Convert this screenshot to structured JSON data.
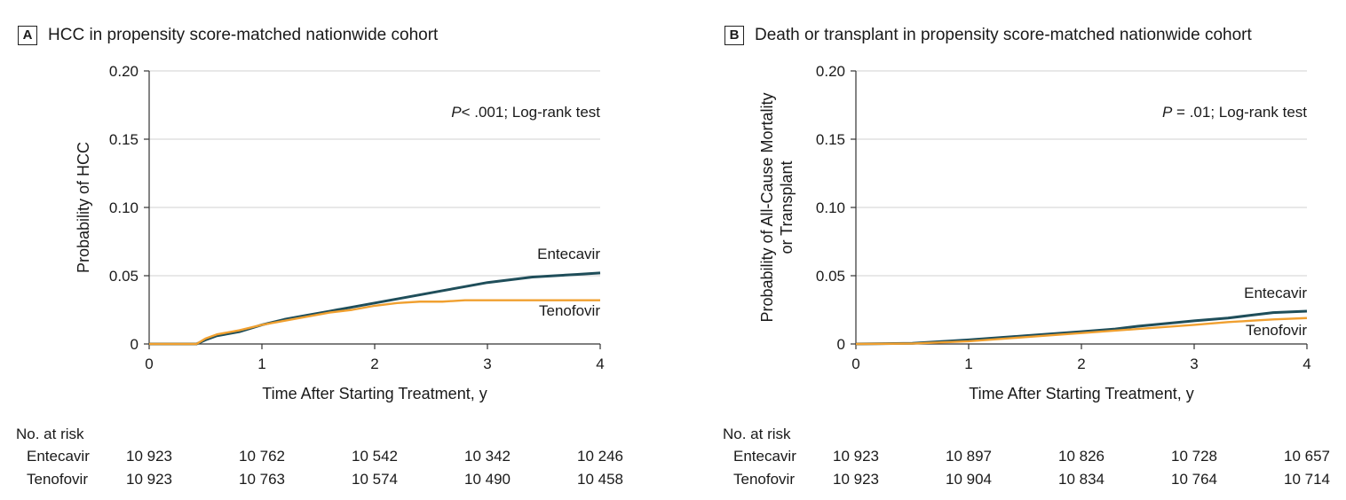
{
  "colors": {
    "entecavir": "#1f4e5a",
    "tenofovir": "#f0a030",
    "grid": "#d0d0d0",
    "axis": "#333333"
  },
  "panels": [
    {
      "badge": "A",
      "title": "HCC in propensity score-matched  nationwide cohort",
      "annotation_p": "P",
      "annotation_rest": "< .001; Log-rank test",
      "risk_header": "No. at risk",
      "risk_rows": [
        {
          "label": "Entecavir",
          "values": [
            "10 923",
            "10 762",
            "10 542",
            "10 342",
            "10 246"
          ]
        },
        {
          "label": "Tenofovir",
          "values": [
            "10 923",
            "10 763",
            "10 574",
            "10 490",
            "10 458"
          ]
        }
      ]
    },
    {
      "badge": "B",
      "title": "Death or transplant in propensity score-matched nationwide cohort",
      "annotation_p": "P",
      "annotation_rest": " = .01; Log-rank test",
      "risk_header": "No. at risk",
      "risk_rows": [
        {
          "label": "Entecavir",
          "values": [
            "10 923",
            "10 897",
            "10 826",
            "10 728",
            "10 657"
          ]
        },
        {
          "label": "Tenofovir",
          "values": [
            "10 923",
            "10 904",
            "10 834",
            "10 764",
            "10 714"
          ]
        }
      ]
    }
  ],
  "chart_data": [
    {
      "type": "line",
      "title": "HCC in propensity score-matched  nationwide cohort",
      "xlabel": "Time After Starting Treatment, y",
      "ylabel": "Probability of HCC",
      "xlim": [
        0,
        4
      ],
      "ylim": [
        0,
        0.2
      ],
      "xticks": [
        "0",
        "1",
        "2",
        "3",
        "4"
      ],
      "yticks": [
        "0",
        "0.05",
        "0.10",
        "0.15",
        "0.20"
      ],
      "grid": true,
      "series": [
        {
          "name": "Entecavir",
          "x": [
            0,
            0.42,
            0.5,
            0.6,
            0.8,
            1.0,
            1.2,
            1.4,
            1.6,
            1.8,
            2.0,
            2.2,
            2.4,
            2.6,
            2.8,
            3.0,
            3.2,
            3.4,
            3.6,
            3.8,
            4.0
          ],
          "y": [
            0,
            0,
            0.003,
            0.006,
            0.009,
            0.014,
            0.018,
            0.021,
            0.024,
            0.027,
            0.03,
            0.033,
            0.036,
            0.039,
            0.042,
            0.045,
            0.047,
            0.049,
            0.05,
            0.051,
            0.052
          ]
        },
        {
          "name": "Tenofovir",
          "x": [
            0,
            0.42,
            0.5,
            0.6,
            0.8,
            1.0,
            1.2,
            1.4,
            1.6,
            1.8,
            2.0,
            2.2,
            2.4,
            2.6,
            2.8,
            3.0,
            3.2,
            3.4,
            3.6,
            3.8,
            4.0
          ],
          "y": [
            0,
            0,
            0.004,
            0.007,
            0.01,
            0.014,
            0.017,
            0.02,
            0.023,
            0.025,
            0.028,
            0.03,
            0.031,
            0.031,
            0.032,
            0.032,
            0.032,
            0.032,
            0.032,
            0.032,
            0.032
          ]
        }
      ]
    },
    {
      "type": "line",
      "title": "Death or transplant in propensity score-matched nationwide cohort",
      "xlabel": "Time After Starting Treatment, y",
      "ylabel": [
        "Probability of All-Cause Mortality",
        "or Transplant"
      ],
      "xlim": [
        0,
        4
      ],
      "ylim": [
        0,
        0.2
      ],
      "xticks": [
        "0",
        "1",
        "2",
        "3",
        "4"
      ],
      "yticks": [
        "0",
        "0.05",
        "0.10",
        "0.15",
        "0.20"
      ],
      "grid": true,
      "series": [
        {
          "name": "Entecavir",
          "x": [
            0,
            0.5,
            1.0,
            1.5,
            2.0,
            2.3,
            2.5,
            3.0,
            3.3,
            3.5,
            3.7,
            4.0
          ],
          "y": [
            0,
            0.0005,
            0.003,
            0.006,
            0.009,
            0.011,
            0.013,
            0.017,
            0.019,
            0.021,
            0.023,
            0.024
          ]
        },
        {
          "name": "Tenofovir",
          "x": [
            0,
            0.5,
            1.0,
            1.5,
            2.0,
            2.5,
            3.0,
            3.3,
            3.5,
            3.7,
            4.0
          ],
          "y": [
            0,
            0.0003,
            0.002,
            0.005,
            0.008,
            0.011,
            0.014,
            0.016,
            0.017,
            0.018,
            0.019
          ]
        }
      ]
    }
  ]
}
